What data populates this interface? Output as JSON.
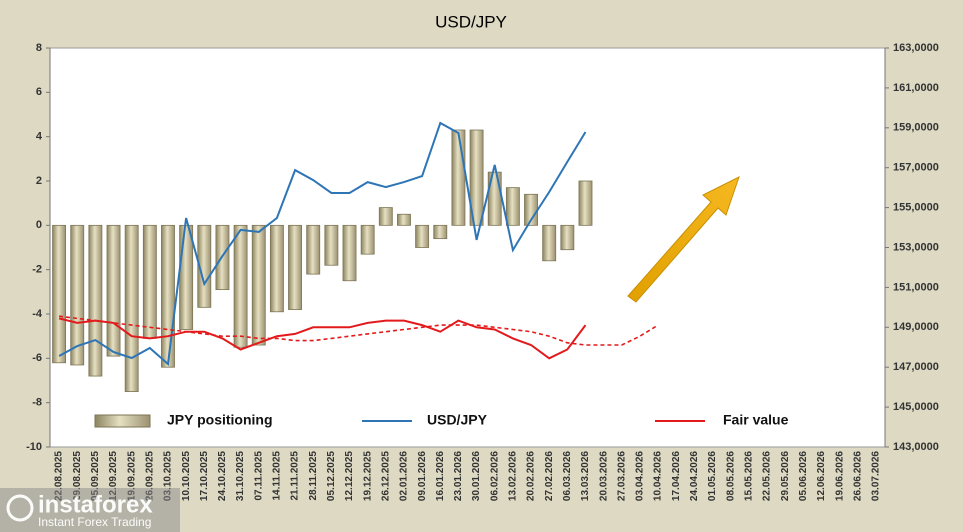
{
  "chart_data": {
    "type": "bar",
    "title": "USD/JPY",
    "categories": [
      "22.08.2025",
      "29.08.2025",
      "05.09.2025",
      "12.09.2025",
      "19.09.2025",
      "26.09.2025",
      "03.10.2025",
      "10.10.2025",
      "17.10.2025",
      "24.10.2025",
      "31.10.2025",
      "07.11.2025",
      "14.11.2025",
      "21.11.2025",
      "28.11.2025",
      "05.12.2025",
      "12.12.2025",
      "19.12.2025",
      "26.12.2025",
      "02.01.2026",
      "09.01.2026",
      "16.01.2026",
      "23.01.2026",
      "30.01.2026",
      "06.02.2026",
      "13.02.2026",
      "20.02.2026",
      "27.02.2026",
      "06.03.2026",
      "13.03.2026",
      "20.03.2026",
      "27.03.2026",
      "03.04.2026",
      "10.04.2026",
      "17.04.2026",
      "24.04.2026",
      "01.05.2026",
      "08.05.2026",
      "15.05.2026",
      "22.05.2026",
      "29.05.2026",
      "05.06.2026",
      "12.06.2026",
      "19.06.2026",
      "26.06.2026",
      "03.07.2026"
    ],
    "series": [
      {
        "name": "JPY positioning",
        "type": "bar",
        "axis": "y",
        "color": "#c4bc96",
        "values": [
          -6.2,
          -6.3,
          -6.8,
          -5.9,
          -7.5,
          -5.1,
          -6.4,
          -4.7,
          -3.7,
          -2.9,
          -5.5,
          -5.4,
          -3.9,
          -3.8,
          -2.2,
          -1.8,
          -2.5,
          -1.3,
          0.8,
          0.5,
          -1.0,
          -0.6,
          4.3,
          4.3,
          2.4,
          1.7,
          1.4,
          -1.6,
          -1.1,
          2.0,
          null,
          null,
          null,
          null,
          null,
          null,
          null,
          null,
          null,
          null,
          null,
          null,
          null,
          null,
          null,
          null
        ]
      },
      {
        "name": "USD/JPY",
        "type": "line",
        "axis": "y2",
        "color": "#2e75b6",
        "values": [
          147560,
          148060,
          148360,
          147760,
          147460,
          147960,
          147160,
          154480,
          151170,
          152570,
          153880,
          153780,
          154480,
          156880,
          156380,
          155730,
          155730,
          156280,
          156030,
          156280,
          156580,
          159240,
          158740,
          153380,
          157140,
          152870,
          154380,
          155780,
          157290,
          158790,
          null,
          null,
          null,
          null,
          null,
          null,
          null,
          null,
          null,
          null,
          null,
          null,
          null,
          null,
          null,
          null
        ]
      },
      {
        "name": "Fair value",
        "type": "line",
        "axis": "y",
        "color": "#e31a1c",
        "values": [
          -4.2,
          -4.4,
          -4.3,
          -4.4,
          -5.0,
          -5.1,
          -5.0,
          -4.8,
          -4.8,
          -5.1,
          -5.6,
          -5.3,
          -5.0,
          -4.9,
          -4.6,
          -4.6,
          -4.6,
          -4.4,
          -4.3,
          -4.3,
          -4.5,
          -4.8,
          -4.3,
          -4.6,
          -4.7,
          -5.1,
          -5.4,
          -6.0,
          -5.6,
          -4.5,
          null,
          null,
          null,
          null,
          null,
          null,
          null,
          null,
          null,
          null,
          null,
          null,
          null,
          null,
          null,
          null
        ]
      },
      {
        "type": "line",
        "axis": "y",
        "color": "#e31a1c",
        "dashed": true,
        "values": [
          -4.1,
          -4.2,
          -4.3,
          -4.4,
          -4.5,
          -4.6,
          -4.7,
          -4.8,
          -4.9,
          -5.0,
          -5.0,
          -5.1,
          -5.1,
          -5.2,
          -5.2,
          -5.1,
          -5.0,
          -4.9,
          -4.8,
          -4.7,
          -4.6,
          -4.5,
          -4.5,
          -4.5,
          -4.6,
          -4.7,
          -4.8,
          -5.0,
          -5.3,
          -5.4,
          -5.4,
          -5.4,
          -5.0,
          -4.5,
          null,
          null,
          null,
          null,
          null,
          null,
          null,
          null,
          null,
          null,
          null,
          null
        ]
      }
    ],
    "ylim": [
      -10,
      8
    ],
    "yticks": [
      -10,
      -8,
      -6,
      -4,
      -2,
      0,
      2,
      4,
      6,
      8
    ],
    "y2lim": [
      143000,
      163000
    ],
    "y2ticks": [
      {
        "value": 143000,
        "label": "143,0000"
      },
      {
        "value": 145000,
        "label": "145,0000"
      },
      {
        "value": 147000,
        "label": "147,0000"
      },
      {
        "value": 149000,
        "label": "149,0000"
      },
      {
        "value": 151000,
        "label": "151,0000"
      },
      {
        "value": 153000,
        "label": "153,0000"
      },
      {
        "value": 155000,
        "label": "155,0000"
      },
      {
        "value": 157000,
        "label": "157,0000"
      },
      {
        "value": 159000,
        "label": "159,0000"
      },
      {
        "value": 161000,
        "label": "161,0000"
      },
      {
        "value": 163000,
        "label": "163,0000"
      }
    ],
    "legend": "bottom",
    "watermark": {
      "brand": "instaforex",
      "tagline": "Instant Forex Trading"
    }
  }
}
